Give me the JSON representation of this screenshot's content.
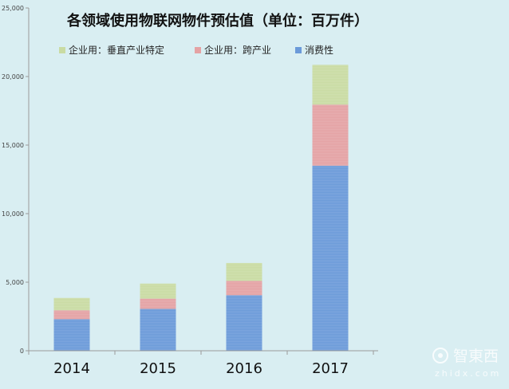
{
  "chart_data": {
    "type": "bar",
    "stacked": true,
    "title": "各领域使用物联网物件预估值（单位：百万件）",
    "xlabel": "",
    "ylabel": "",
    "categories": [
      "2014",
      "2015",
      "2016",
      "2017"
    ],
    "series": [
      {
        "name": "消费性",
        "values": [
          2300,
          3050,
          4050,
          13500
        ],
        "color": "#6b9ad9"
      },
      {
        "name": "企业用：跨产业",
        "values": [
          650,
          750,
          1050,
          4450
        ],
        "color": "#e4a2a4"
      },
      {
        "name": "企业用：垂直产业特定",
        "values": [
          900,
          1100,
          1300,
          2900
        ],
        "color": "#c9dba3"
      }
    ],
    "legend_order": [
      2,
      1,
      0
    ],
    "legend_position": "top",
    "ylim": [
      0,
      25000
    ],
    "yticks": [
      0,
      5000,
      10000,
      15000,
      20000,
      25000
    ],
    "ytick_labels": [
      "0",
      "5,000",
      "10,000",
      "15,000",
      "20,000",
      "25,000"
    ],
    "grid": false
  },
  "watermark": {
    "brand": "智東西",
    "domain": "zhidx.com"
  }
}
